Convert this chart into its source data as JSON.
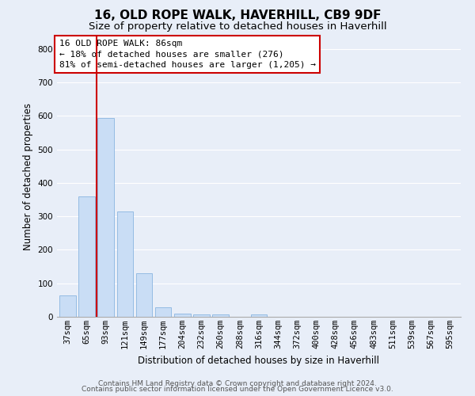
{
  "title": "16, OLD ROPE WALK, HAVERHILL, CB9 9DF",
  "subtitle": "Size of property relative to detached houses in Haverhill",
  "xlabel": "Distribution of detached houses by size in Haverhill",
  "ylabel": "Number of detached properties",
  "bar_labels": [
    "37sqm",
    "65sqm",
    "93sqm",
    "121sqm",
    "149sqm",
    "177sqm",
    "204sqm",
    "232sqm",
    "260sqm",
    "288sqm",
    "316sqm",
    "344sqm",
    "372sqm",
    "400sqm",
    "428sqm",
    "456sqm",
    "483sqm",
    "511sqm",
    "539sqm",
    "567sqm",
    "595sqm"
  ],
  "bar_values": [
    65,
    360,
    595,
    315,
    130,
    28,
    10,
    8,
    8,
    0,
    8,
    0,
    0,
    0,
    0,
    0,
    0,
    0,
    0,
    0,
    0
  ],
  "bar_color": "#c9ddf5",
  "bar_edge_color": "#8ab4e0",
  "vline_x": 1.5,
  "vline_color": "#cc0000",
  "ylim": [
    0,
    840
  ],
  "yticks": [
    0,
    100,
    200,
    300,
    400,
    500,
    600,
    700,
    800
  ],
  "annotation_text": "16 OLD ROPE WALK: 86sqm\n← 18% of detached houses are smaller (276)\n81% of semi-detached houses are larger (1,205) →",
  "annotation_box_color": "#ffffff",
  "annotation_box_edge": "#cc0000",
  "footer_line1": "Contains HM Land Registry data © Crown copyright and database right 2024.",
  "footer_line2": "Contains public sector information licensed under the Open Government Licence v3.0.",
  "bg_color": "#e8eef8",
  "plot_bg_color": "#e8eef8",
  "grid_color": "#ffffff",
  "title_fontsize": 11,
  "subtitle_fontsize": 9.5,
  "axis_label_fontsize": 8.5,
  "tick_fontsize": 7.5,
  "footer_fontsize": 6.5,
  "annotation_fontsize": 8
}
